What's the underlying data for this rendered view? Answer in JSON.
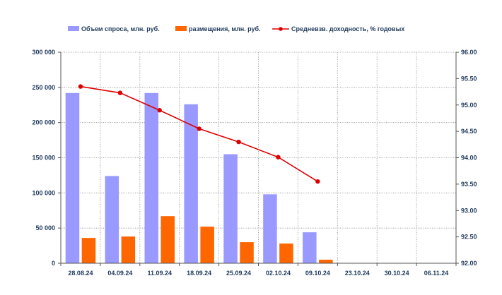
{
  "chart_data": {
    "type": "bar",
    "categories": [
      "28.08.24",
      "04.09.24",
      "11.09.24",
      "18.09.24",
      "25.09.24",
      "02.10.24",
      "09.10.24",
      "23.10.24",
      "30.10.24",
      "06.11.24"
    ],
    "series": [
      {
        "name": "Объем спроса, млн. руб.",
        "type": "bar",
        "axis": "left",
        "color": "#9999ff",
        "values": [
          242000,
          124000,
          242000,
          226000,
          155000,
          98000,
          44000,
          null,
          null,
          null
        ]
      },
      {
        "name": "размещения, млн. руб.",
        "type": "bar",
        "axis": "left",
        "color": "#ff6600",
        "values": [
          36000,
          38000,
          67000,
          52000,
          30000,
          28000,
          5000,
          null,
          null,
          null
        ]
      },
      {
        "name": "Средневзв. доходность, % годовых",
        "type": "line",
        "axis": "right",
        "color": "#dd0000",
        "values": [
          95.35,
          95.23,
          94.9,
          94.55,
          94.3,
          94.01,
          93.55,
          null,
          null,
          null
        ]
      }
    ],
    "y_left": {
      "min": 0,
      "max": 300000,
      "ticks": [
        0,
        50000,
        100000,
        150000,
        200000,
        250000,
        300000
      ],
      "tick_labels": [
        "0",
        "50 000",
        "100 000",
        "150 000",
        "200 000",
        "250 000",
        "300 000"
      ]
    },
    "y_right": {
      "min": 92.0,
      "max": 96.0,
      "ticks": [
        92.0,
        92.5,
        93.0,
        93.5,
        94.0,
        94.5,
        95.0,
        95.5,
        96.0
      ],
      "tick_labels": [
        "92.00",
        "92.50",
        "93.00",
        "93.50",
        "94.00",
        "94.50",
        "95.00",
        "95.50",
        "96.00"
      ]
    },
    "grid": true,
    "legend_position": "top"
  }
}
